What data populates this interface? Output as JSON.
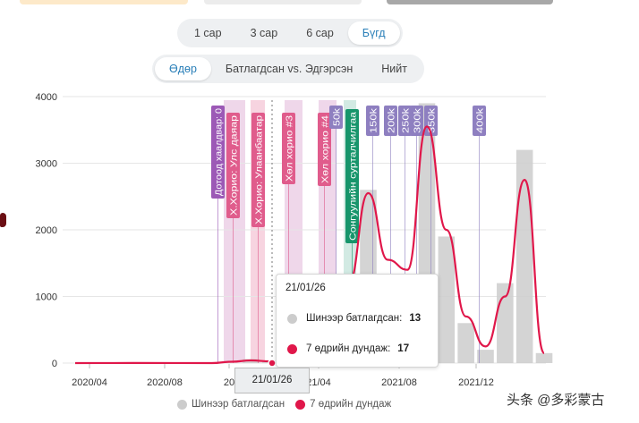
{
  "colors": {
    "bar": "#cccccc",
    "line": "#e0174a",
    "accent": "#2a7fb8",
    "lockdown_purple": "#9c59b6",
    "lockdown_pink": "#e05c8c",
    "election_green": "#17956b"
  },
  "range_selector": {
    "options": [
      "1 сар",
      "3 сар",
      "6 сар",
      "Бүгд"
    ],
    "active": "Бүгд"
  },
  "view_selector": {
    "options": [
      "Өдөр",
      "Батлагдсан vs. Эдгэрсэн",
      "Нийт"
    ],
    "active": "Өдөр"
  },
  "tooltip": {
    "date": "21/01/26",
    "rows": [
      {
        "label": "Шинээр батлагдсан:",
        "value": "13",
        "color": "#cccccc"
      },
      {
        "label": "7 өдрийн дундаж:",
        "value": "17",
        "color": "#e0174a"
      }
    ]
  },
  "crosshair_date": "21/01/26",
  "legend": [
    {
      "label": "Шинээр батлагдсан",
      "color": "#cccccc"
    },
    {
      "label": "7 өдрийн дундаж",
      "color": "#e0174a"
    }
  ],
  "watermark": "头条 @多彩蒙古",
  "chart_data": {
    "type": "bar",
    "y_ticks": [
      "0",
      "1000",
      "2000",
      "3000",
      "4000"
    ],
    "ylim": [
      0,
      4000
    ],
    "x_ticks": [
      "2020/04",
      "2020/08",
      "2021/01",
      "2021/04",
      "2021/08",
      "2021/12"
    ],
    "visible_x_ticks": [
      "2020/04",
      "2020/08",
      "20",
      "21/04",
      "2021/08",
      "2021/12"
    ],
    "x_range": [
      "2020/03",
      "2022/03"
    ],
    "grid": true,
    "legend_position": "bottom",
    "series": [
      {
        "name": "Шинээр батлагдсан",
        "type": "bar",
        "values": [
          [
            "2020/04",
            5
          ],
          [
            "2020/08",
            2
          ],
          [
            "2020/12",
            60
          ],
          [
            "2021/01",
            30
          ],
          [
            "2021/03",
            90
          ],
          [
            "2021/04",
            300
          ],
          [
            "2021/05",
            1000
          ],
          [
            "2021/06",
            2600
          ],
          [
            "2021/07",
            1300
          ],
          [
            "2021/08",
            1200
          ],
          [
            "2021/09",
            3900
          ],
          [
            "2021/10",
            1900
          ],
          [
            "2021/11",
            600
          ],
          [
            "2021/12",
            200
          ],
          [
            "2022/01",
            1200
          ],
          [
            "2022/02",
            3200
          ],
          [
            "2022/03",
            150
          ]
        ]
      },
      {
        "name": "7 өдрийн дундаж",
        "type": "line",
        "values": [
          [
            "2020/03",
            0
          ],
          [
            "2020/06",
            2
          ],
          [
            "2020/10",
            0
          ],
          [
            "2020/11",
            20
          ],
          [
            "2020/12",
            40
          ],
          [
            "2021/01",
            25
          ],
          [
            "2021/01",
            17
          ],
          [
            "2021/02",
            60
          ],
          [
            "2021/03",
            100
          ],
          [
            "2021/04",
            400
          ],
          [
            "2021/05",
            1200
          ],
          [
            "2021/06",
            2550
          ],
          [
            "2021/07",
            1550
          ],
          [
            "2021/08",
            1400
          ],
          [
            "2021/09",
            3550
          ],
          [
            "2021/10",
            2000
          ],
          [
            "2021/11",
            700
          ],
          [
            "2021/12",
            250
          ],
          [
            "2022/01",
            1000
          ],
          [
            "2022/02",
            2750
          ],
          [
            "2022/03",
            150
          ]
        ]
      }
    ],
    "annotations": [
      {
        "label": "Дотоод хаалдвар: 0",
        "kind": "lockdown"
      },
      {
        "label": "Х.Хорио: Улс даяар",
        "kind": "lockdown-pink"
      },
      {
        "label": "Х.Хорио: Улаанбаатар",
        "kind": "lockdown-pink"
      },
      {
        "label": "Хөл хорио #3",
        "kind": "lockdown-pink"
      },
      {
        "label": "Хөл хорио #4",
        "kind": "lockdown-pink"
      },
      {
        "label": "50k",
        "kind": "milestone"
      },
      {
        "label": "Сонгуулийн сурталчилгаа",
        "kind": "election"
      },
      {
        "label": "150k",
        "kind": "milestone"
      },
      {
        "label": "200k",
        "kind": "milestone"
      },
      {
        "label": "250k",
        "kind": "milestone"
      },
      {
        "label": "300k",
        "kind": "milestone"
      },
      {
        "label": "350k",
        "kind": "milestone"
      },
      {
        "label": "400k",
        "kind": "milestone"
      }
    ]
  }
}
